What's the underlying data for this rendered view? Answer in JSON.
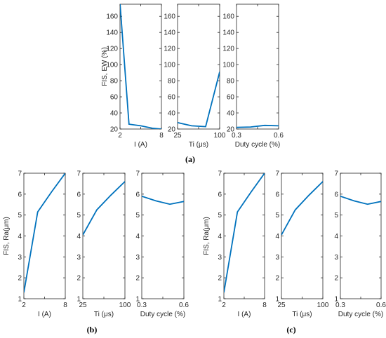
{
  "line_color": "#0072bd",
  "chart_data": [
    {
      "group": "a",
      "caption": "(a)",
      "ylabel": "FIS, EW (%)",
      "ylim": [
        20,
        175
      ],
      "yticks": [
        20,
        40,
        60,
        80,
        100,
        120,
        140,
        160
      ],
      "panels": [
        {
          "type": "line",
          "xlabel": "I (A)",
          "xlim": [
            2,
            8
          ],
          "xticks": [
            2,
            5,
            8
          ],
          "xticklabels": [
            "2",
            "",
            "8"
          ],
          "x": [
            2,
            3.3,
            5,
            6.7,
            8
          ],
          "y": [
            176,
            26,
            24,
            21,
            20
          ]
        },
        {
          "type": "line",
          "xlabel": "Ti (μs)",
          "xlim": [
            25,
            100
          ],
          "xticks": [
            25,
            62.5,
            100
          ],
          "xticklabels": [
            "25",
            "",
            "100"
          ],
          "x": [
            25,
            50,
            75,
            100
          ],
          "y": [
            28,
            24,
            23,
            91
          ]
        },
        {
          "type": "line",
          "xlabel": "Duty cycle (%)",
          "xlim": [
            0.3,
            0.6
          ],
          "xticks": [
            0.3,
            0.45,
            0.6
          ],
          "xticklabels": [
            "0.3",
            "",
            "0.6"
          ],
          "x": [
            0.3,
            0.4,
            0.5,
            0.6
          ],
          "y": [
            22,
            22.5,
            24.5,
            24
          ]
        }
      ]
    },
    {
      "group": "b",
      "caption": "(b)",
      "ylabel": "FIS, Ra(μm)",
      "ylim": [
        1,
        7
      ],
      "yticks": [
        1,
        2,
        3,
        4,
        5,
        6,
        7
      ],
      "panels": [
        {
          "type": "line",
          "xlabel": "I (A)",
          "xlim": [
            2,
            8
          ],
          "xticks": [
            2,
            5,
            8
          ],
          "xticklabels": [
            "2",
            "",
            "8"
          ],
          "x": [
            2,
            4,
            6,
            8
          ],
          "y": [
            1.3,
            5.15,
            6.1,
            7.0
          ]
        },
        {
          "type": "line",
          "xlabel": "Ti (μs)",
          "xlim": [
            25,
            100
          ],
          "xticks": [
            25,
            62.5,
            100
          ],
          "xticklabels": [
            "25",
            "",
            "100"
          ],
          "x": [
            25,
            50,
            75,
            100
          ],
          "y": [
            4.05,
            5.25,
            5.95,
            6.6
          ]
        },
        {
          "type": "line",
          "xlabel": "Duty cycle (%)",
          "xlim": [
            0.3,
            0.6
          ],
          "xticks": [
            0.3,
            0.45,
            0.6
          ],
          "xticklabels": [
            "0.3",
            "",
            "0.6"
          ],
          "x": [
            0.3,
            0.4,
            0.5,
            0.6
          ],
          "y": [
            5.9,
            5.68,
            5.52,
            5.65
          ]
        }
      ]
    },
    {
      "group": "c",
      "caption": "(c)",
      "ylabel": "FIS, Ra(μm)",
      "ylim": [
        1,
        7
      ],
      "yticks": [
        1,
        2,
        3,
        4,
        5,
        6,
        7
      ],
      "panels": [
        {
          "type": "line",
          "xlabel": "I (A)",
          "xlim": [
            2,
            8
          ],
          "xticks": [
            2,
            5,
            8
          ],
          "xticklabels": [
            "2",
            "",
            "8"
          ],
          "x": [
            2,
            4,
            6,
            8
          ],
          "y": [
            1.3,
            5.15,
            6.1,
            7.0
          ]
        },
        {
          "type": "line",
          "xlabel": "Ti (μs)",
          "xlim": [
            25,
            100
          ],
          "xticks": [
            25,
            62.5,
            100
          ],
          "xticklabels": [
            "25",
            "",
            "100"
          ],
          "x": [
            25,
            50,
            75,
            100
          ],
          "y": [
            4.05,
            5.25,
            5.95,
            6.6
          ]
        },
        {
          "type": "line",
          "xlabel": "Duty cycle (%)",
          "xlim": [
            0.3,
            0.6
          ],
          "xticks": [
            0.3,
            0.45,
            0.6
          ],
          "xticklabels": [
            "0.3",
            "",
            "0.6"
          ],
          "x": [
            0.3,
            0.4,
            0.5,
            0.6
          ],
          "y": [
            5.9,
            5.68,
            5.52,
            5.65
          ]
        }
      ]
    }
  ]
}
